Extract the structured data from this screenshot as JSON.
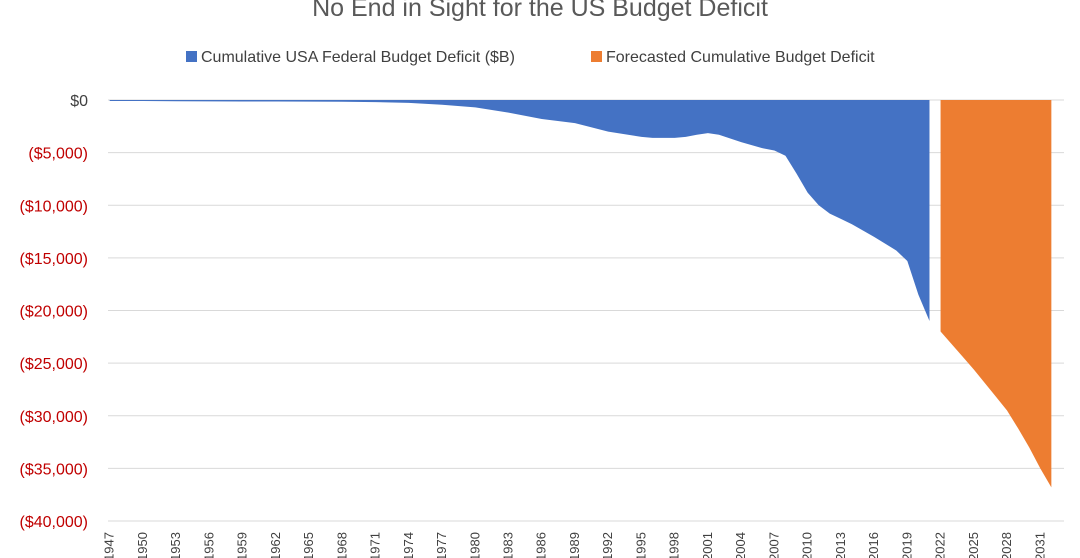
{
  "chart_data": {
    "type": "area",
    "title": "No End in Sight for the US Budget Deficit",
    "xlabel": "",
    "ylabel": "",
    "ylim": [
      -40000,
      0
    ],
    "xlim": [
      1947,
      2032
    ],
    "grid": true,
    "legend_position": "top",
    "colors": {
      "actual": "#4472c4",
      "forecast": "#ed7d31",
      "negative_label": "#c00000",
      "zero_label": "#404040",
      "grid": "#d9d9d9"
    },
    "y_ticks": [
      {
        "value": 0,
        "label": "$0"
      },
      {
        "value": -5000,
        "label": "($5,000)"
      },
      {
        "value": -10000,
        "label": "($10,000)"
      },
      {
        "value": -15000,
        "label": "($15,000)"
      },
      {
        "value": -20000,
        "label": "($20,000)"
      },
      {
        "value": -25000,
        "label": "($25,000)"
      },
      {
        "value": -30000,
        "label": "($30,000)"
      },
      {
        "value": -35000,
        "label": "($35,000)"
      },
      {
        "value": -40000,
        "label": "($40,000)"
      }
    ],
    "x_ticks": [
      {
        "value": 1947,
        "label": "1947"
      },
      {
        "value": 1950,
        "label": "1950"
      },
      {
        "value": 1953,
        "label": "1953"
      },
      {
        "value": 1956,
        "label": "1956"
      },
      {
        "value": 1959,
        "label": "1959"
      },
      {
        "value": 1962,
        "label": "1962"
      },
      {
        "value": 1965,
        "label": "1965"
      },
      {
        "value": 1968,
        "label": "1968"
      },
      {
        "value": 1971,
        "label": "1971"
      },
      {
        "value": 1974,
        "label": "1974"
      },
      {
        "value": 1977,
        "label": "1977"
      },
      {
        "value": 1980,
        "label": "1980"
      },
      {
        "value": 1983,
        "label": "1983"
      },
      {
        "value": 1986,
        "label": "1986"
      },
      {
        "value": 1989,
        "label": "1989"
      },
      {
        "value": 1992,
        "label": "1992"
      },
      {
        "value": 1995,
        "label": "1995"
      },
      {
        "value": 1998,
        "label": "1998"
      },
      {
        "value": 2001,
        "label": "2001"
      },
      {
        "value": 2004,
        "label": "2004"
      },
      {
        "value": 2007,
        "label": "2007"
      },
      {
        "value": 2010,
        "label": "2010"
      },
      {
        "value": 2013,
        "label": "2013"
      },
      {
        "value": 2016,
        "label": "2016"
      },
      {
        "value": 2019,
        "label": "2019"
      },
      {
        "value": 2022,
        "label": "2022"
      },
      {
        "value": 2025,
        "label": "2025"
      },
      {
        "value": 2028,
        "label": "2028"
      },
      {
        "value": 2031,
        "label": "2031"
      }
    ],
    "series": [
      {
        "name": "Cumulative USA Federal Budget Deficit ($B)",
        "color": "#4472c4",
        "points": [
          [
            1947,
            -100
          ],
          [
            1950,
            -100
          ],
          [
            1953,
            -120
          ],
          [
            1956,
            -130
          ],
          [
            1959,
            -140
          ],
          [
            1962,
            -140
          ],
          [
            1965,
            -150
          ],
          [
            1968,
            -170
          ],
          [
            1971,
            -200
          ],
          [
            1974,
            -270
          ],
          [
            1977,
            -450
          ],
          [
            1980,
            -700
          ],
          [
            1983,
            -1200
          ],
          [
            1986,
            -1800
          ],
          [
            1989,
            -2200
          ],
          [
            1992,
            -3000
          ],
          [
            1995,
            -3500
          ],
          [
            1996,
            -3600
          ],
          [
            1998,
            -3600
          ],
          [
            1999,
            -3500
          ],
          [
            2000,
            -3300
          ],
          [
            2001,
            -3150
          ],
          [
            2002,
            -3300
          ],
          [
            2004,
            -4000
          ],
          [
            2006,
            -4600
          ],
          [
            2007,
            -4800
          ],
          [
            2008,
            -5300
          ],
          [
            2009,
            -7000
          ],
          [
            2010,
            -8800
          ],
          [
            2011,
            -10000
          ],
          [
            2012,
            -10800
          ],
          [
            2013,
            -11300
          ],
          [
            2014,
            -11800
          ],
          [
            2016,
            -13000
          ],
          [
            2018,
            -14300
          ],
          [
            2019,
            -15300
          ],
          [
            2020,
            -18500
          ],
          [
            2021,
            -21000
          ]
        ]
      },
      {
        "name": "Forecasted Cumulative Budget Deficit",
        "color": "#ed7d31",
        "points": [
          [
            2022,
            -22000
          ],
          [
            2023,
            -23200
          ],
          [
            2024,
            -24400
          ],
          [
            2025,
            -25600
          ],
          [
            2026,
            -26900
          ],
          [
            2027,
            -28200
          ],
          [
            2028,
            -29500
          ],
          [
            2029,
            -31200
          ],
          [
            2030,
            -33000
          ],
          [
            2031,
            -35000
          ],
          [
            2032,
            -36800
          ]
        ]
      }
    ]
  }
}
